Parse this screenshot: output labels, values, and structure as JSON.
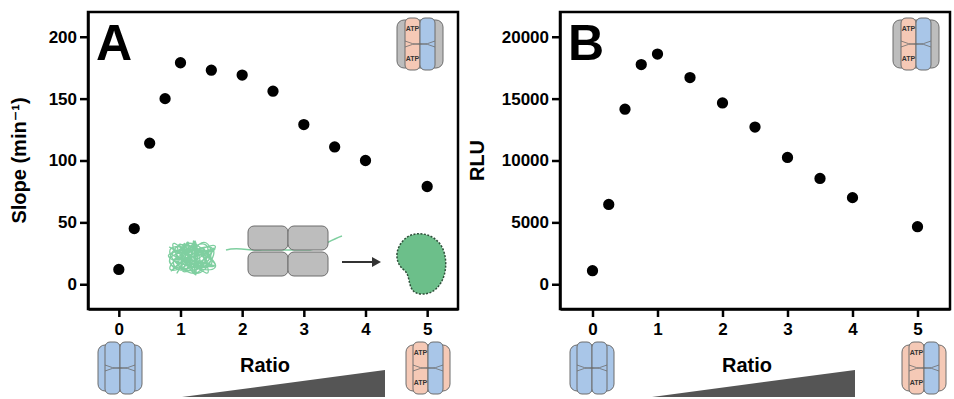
{
  "chart_data": [
    {
      "type": "scatter",
      "title": "A",
      "x_label": "Ratio",
      "y_label": "Slope (min⁻¹)",
      "annotations": [
        "ATP"
      ],
      "color": "#000000",
      "marker": "circle",
      "grid": false,
      "x": [
        0,
        0.25,
        0.5,
        0.75,
        1,
        1.5,
        2,
        2.5,
        3,
        3.5,
        4,
        5
      ],
      "values": [
        12,
        45,
        114,
        150,
        179,
        173,
        169,
        156,
        129,
        111,
        100,
        79
      ],
      "xlim": [
        -0.5,
        5.5
      ],
      "xticks": [
        0,
        1,
        2,
        3,
        4,
        5
      ],
      "ylim": [
        -20,
        220
      ],
      "yticks": [
        0,
        50,
        100,
        150,
        200
      ]
    },
    {
      "type": "scatter",
      "title": "B",
      "x_label": "Ratio",
      "y_label": "RLU",
      "annotations": [
        "ATP"
      ],
      "color": "#000000",
      "marker": "circle",
      "grid": false,
      "x": [
        0,
        0.25,
        0.5,
        0.75,
        1,
        1.5,
        2,
        2.5,
        3,
        3.5,
        4,
        5
      ],
      "values": [
        1100,
        6450,
        14150,
        17750,
        18600,
        16700,
        14650,
        12700,
        10250,
        8550,
        7000,
        4650
      ],
      "xlim": [
        -0.5,
        5.5
      ],
      "xticks": [
        0,
        1,
        2,
        3,
        4,
        5
      ],
      "ylim": [
        -2000,
        22000
      ],
      "yticks": [
        0,
        5000,
        10000,
        15000,
        20000
      ]
    }
  ]
}
